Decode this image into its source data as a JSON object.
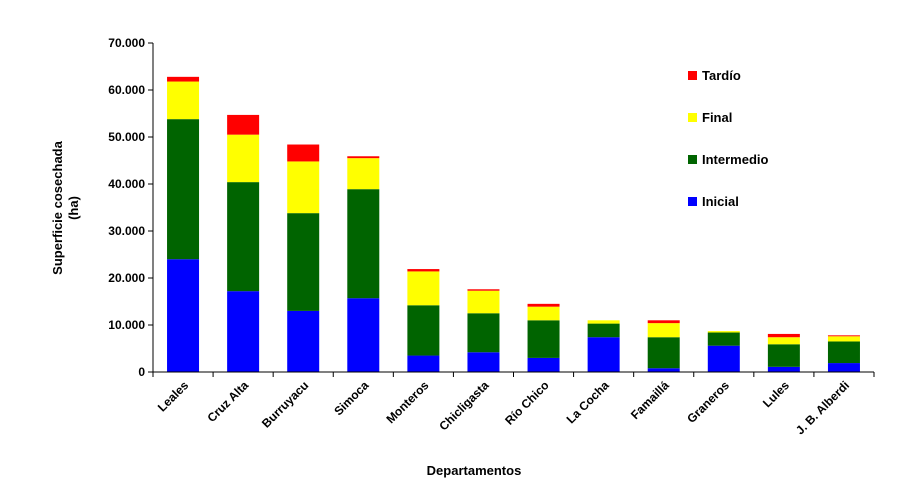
{
  "chart_data": {
    "type": "bar",
    "stacked": true,
    "xlabel": "Departamentos",
    "ylabel_line1": "Superficie cosechada",
    "ylabel_line2": "(ha)",
    "ylim": [
      0,
      70000
    ],
    "yticks": [
      0,
      10000,
      20000,
      30000,
      40000,
      50000,
      60000,
      70000
    ],
    "ytick_labels": [
      "0",
      "10.000",
      "20.000",
      "30.000",
      "40.000",
      "50.000",
      "60.000",
      "70.000"
    ],
    "categories": [
      "Leales",
      "Cruz Alta",
      "Burruyacu",
      "Simoca",
      "Monteros",
      "Chicligasta",
      "Río Chico",
      "La Cocha",
      "Famaillá",
      "Graneros",
      "Lules",
      "J. B. Alberdi"
    ],
    "series": [
      {
        "name": "Inicial",
        "color": "#0000ff",
        "values": [
          24000,
          17200,
          13000,
          15700,
          3500,
          4200,
          3000,
          7400,
          800,
          5600,
          1100,
          1900
        ]
      },
      {
        "name": "Intermedio",
        "color": "#006400",
        "values": [
          29800,
          23200,
          20800,
          23200,
          10700,
          8300,
          8000,
          2900,
          6600,
          2800,
          4800,
          4600
        ]
      },
      {
        "name": "Final",
        "color": "#ffff00",
        "values": [
          8000,
          10100,
          11000,
          6600,
          7200,
          4800,
          2900,
          700,
          3000,
          300,
          1500,
          1100
        ]
      },
      {
        "name": "Tardío",
        "color": "#ff0000",
        "values": [
          1000,
          4200,
          3600,
          400,
          500,
          300,
          600,
          0,
          600,
          0,
          700,
          200
        ]
      }
    ],
    "legend_order": [
      "Tardío",
      "Final",
      "Intermedio",
      "Inicial"
    ],
    "legend_position": "top-right"
  }
}
